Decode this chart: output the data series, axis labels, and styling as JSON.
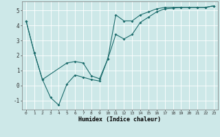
{
  "xlabel": "Humidex (Indice chaleur)",
  "bg_color": "#cde8e8",
  "grid_color": "#ffffff",
  "line_color": "#1a6b6b",
  "xlim": [
    -0.5,
    23.5
  ],
  "ylim": [
    -1.6,
    5.6
  ],
  "yticks": [
    -1,
    0,
    1,
    2,
    3,
    4,
    5
  ],
  "xticks": [
    0,
    1,
    2,
    3,
    4,
    5,
    6,
    7,
    8,
    9,
    10,
    11,
    12,
    13,
    14,
    15,
    16,
    17,
    18,
    19,
    20,
    21,
    22,
    23
  ],
  "line1_x": [
    0,
    1,
    2,
    3,
    4,
    5,
    6,
    7,
    8,
    9,
    10,
    11,
    12,
    13,
    14,
    15,
    16,
    17,
    18,
    19,
    20,
    21,
    22,
    23
  ],
  "line1_y": [
    4.3,
    2.2,
    0.4,
    -0.8,
    -1.3,
    0.1,
    0.7,
    0.55,
    0.4,
    0.3,
    1.75,
    4.7,
    4.3,
    4.3,
    4.7,
    4.9,
    5.1,
    5.2,
    5.2,
    5.2,
    5.2,
    5.2,
    5.2,
    5.3
  ],
  "line2_x": [
    0,
    1,
    2,
    5,
    6,
    7,
    8,
    9,
    10,
    11,
    12,
    13,
    14,
    15,
    16,
    17,
    18,
    19,
    20,
    21,
    22,
    23
  ],
  "line2_y": [
    4.3,
    2.2,
    0.4,
    1.5,
    1.6,
    1.5,
    0.65,
    0.45,
    1.75,
    3.4,
    3.1,
    3.4,
    4.2,
    4.55,
    4.9,
    5.1,
    5.15,
    5.2,
    5.2,
    5.2,
    5.2,
    5.3
  ]
}
